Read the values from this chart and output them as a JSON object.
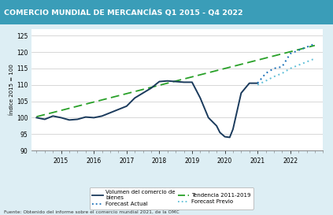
{
  "title": "COMERCIO MUNDIAL DE MERCANCÍAS Q1 2015 - Q4 2022",
  "title_bg": "#3a9db8",
  "title_color": "white",
  "ylabel": "Índice 2015 = 100",
  "ylim": [
    90,
    127
  ],
  "yticks": [
    90,
    95,
    100,
    105,
    110,
    115,
    120,
    125
  ],
  "footer": "Fuente: Obtenido del informe sobre el comercio mundial 2021, de la OMC",
  "bg_color": "#ddeef4",
  "plot_bg": "white",
  "solid_x": [
    2014.25,
    2014.5,
    2014.75,
    2015.0,
    2015.25,
    2015.5,
    2015.75,
    2016.0,
    2016.25,
    2016.5,
    2016.75,
    2017.0,
    2017.25,
    2017.5,
    2017.75,
    2018.0,
    2018.25,
    2018.5,
    2018.75,
    2019.0,
    2019.25,
    2019.5,
    2019.75,
    2019.85,
    2020.0,
    2020.15,
    2020.25,
    2020.5,
    2020.75,
    2021.0
  ],
  "solid_y": [
    100.0,
    99.5,
    100.5,
    100.0,
    99.3,
    99.5,
    100.2,
    100.0,
    100.5,
    101.5,
    102.5,
    103.5,
    106.0,
    107.5,
    109.0,
    111.0,
    111.2,
    111.0,
    110.8,
    110.8,
    106.0,
    100.0,
    97.5,
    95.5,
    94.2,
    94.0,
    96.5,
    107.5,
    110.5,
    110.5
  ],
  "forecast_actual_x": [
    2021.0,
    2021.25,
    2021.5,
    2021.75,
    2022.0,
    2022.25,
    2022.5,
    2022.75
  ],
  "forecast_actual_y": [
    110.5,
    113.5,
    115.0,
    115.5,
    119.5,
    120.5,
    121.5,
    122.5
  ],
  "forecast_previo_x": [
    2021.0,
    2021.25,
    2021.5,
    2021.75,
    2022.0,
    2022.25,
    2022.5,
    2022.75
  ],
  "forecast_previo_y": [
    110.0,
    111.2,
    112.5,
    113.5,
    115.0,
    116.0,
    117.0,
    118.0
  ],
  "trend_x": [
    2014.25,
    2022.75
  ],
  "trend_y": [
    100.3,
    122.0
  ],
  "solid_color": "#1a3a5c",
  "forecast_actual_color": "#1a70b8",
  "forecast_previo_color": "#60c0d8",
  "trend_color": "#28a028",
  "legend_labels": [
    "Volumen del comercio de\nbienes",
    "Tendencia 2011-2019",
    "Forecast Actual",
    "Forecast Previo"
  ],
  "xtick_positions": [
    2015.0,
    2016.0,
    2017.0,
    2018.0,
    2019.0,
    2020.0,
    2021.0,
    2022.0
  ],
  "xtick_labels": [
    "2015",
    "2016",
    "2017",
    "2018",
    "2019",
    "2020",
    "2021",
    "2022"
  ],
  "xlim": [
    2014.1,
    2023.0
  ]
}
